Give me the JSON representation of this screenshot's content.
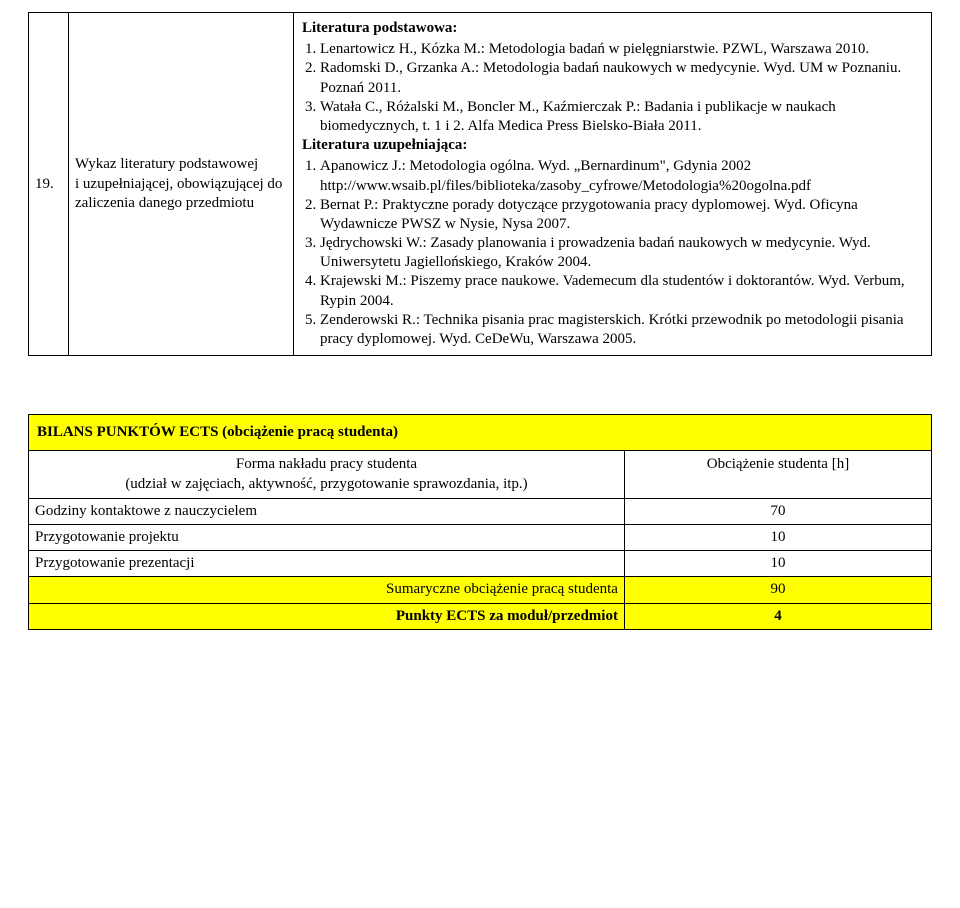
{
  "top": {
    "row_num": "19.",
    "row_label": "Wykaz literatury podstawowej\ni uzupełniającej, obowiązującej do zaliczenia danego przedmiotu",
    "lit_podst_head": "Literatura podstawowa:",
    "lit_podst": [
      "Lenartowicz H., Kózka M.: Metodologia badań w pielęgniarstwie. PZWL, Warszawa 2010.",
      "Radomski D., Grzanka A.: Metodologia badań naukowych w medycynie. Wyd. UM w Poznaniu. Poznań 2011.",
      "Watała C., Różalski M., Boncler M., Kaźmierczak P.: Badania i publikacje w naukach biomedycznych, t. 1 i 2. Alfa Medica Press Bielsko-Biała 2011."
    ],
    "lit_uzup_head": "Literatura uzupełniająca:",
    "lit_uzup": [
      "Apanowicz J.: Metodologia ogólna. Wyd. „Bernardinum\", Gdynia 2002 http://www.wsaib.pl/files/biblioteka/zasoby_cyfrowe/Metodologia%20ogolna.pdf",
      "Bernat P.: Praktyczne porady dotyczące przygotowania pracy dyplomowej. Wyd. Oficyna Wydawnicze PWSZ w Nysie, Nysa 2007.",
      "Jędrychowski W.: Zasady planowania i prowadzenia badań naukowych  w medycynie. Wyd. Uniwersytetu Jagiellońskiego, Kraków 2004.",
      "Krajewski M.: Piszemy prace naukowe. Vademecum dla studentów i doktorantów. Wyd. Verbum, Rypin 2004.",
      "Zenderowski R.: Technika pisania prac magisterskich. Krótki przewodnik po metodologii pisania pracy dyplomowej. Wyd. CeDeWu, Warszawa 2005."
    ]
  },
  "ects": {
    "title": "BILANS PUNKTÓW ECTS  (obciążenie pracą studenta)",
    "col_left": "Forma nakładu pracy studenta\n(udział w zajęciach, aktywność, przygotowanie sprawozdania, itp.)",
    "col_right": "Obciążenie studenta [h]",
    "rows": [
      {
        "label": "Godziny kontaktowe z nauczycielem",
        "val": "70"
      },
      {
        "label": "Przygotowanie projektu",
        "val": "10"
      },
      {
        "label": "Przygotowanie prezentacji",
        "val": "10"
      }
    ],
    "sum_label": "Sumaryczne obciążenie pracą studenta",
    "sum_val": "90",
    "pts_label": "Punkty ECTS za moduł/przedmiot",
    "pts_val": "4"
  },
  "style": {
    "highlight_color": "#ffff00",
    "border_color": "#000000",
    "font_family": "Times New Roman"
  }
}
